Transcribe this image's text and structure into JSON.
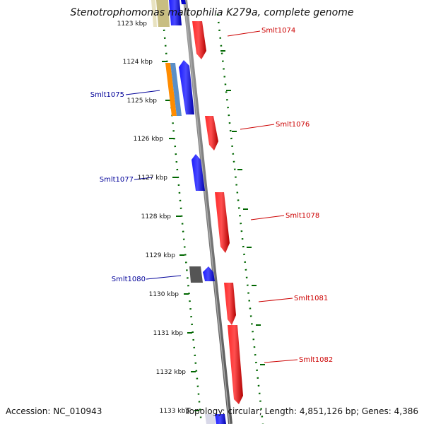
{
  "title": "Stenotrophomonas maltophilia K279a, complete genome",
  "footer": {
    "accession": "Accession: NC_010943",
    "topology": "Topology: circular; Length: 4,851,126 bp; Genes: 4,386"
  },
  "ticks": [
    {
      "label": "1123 kbp",
      "kbp": 1123
    },
    {
      "label": "1124 kbp",
      "kbp": 1124
    },
    {
      "label": "1125 kbp",
      "kbp": 1125
    },
    {
      "label": "1126 kbp",
      "kbp": 1126
    },
    {
      "label": "1127 kbp",
      "kbp": 1127
    },
    {
      "label": "1128 kbp",
      "kbp": 1128
    },
    {
      "label": "1129 kbp",
      "kbp": 1129
    },
    {
      "label": "1130 kbp",
      "kbp": 1130
    },
    {
      "label": "1131 kbp",
      "kbp": 1131
    },
    {
      "label": "1132 kbp",
      "kbp": 1132
    },
    {
      "label": "1133 kbp",
      "kbp": 1133
    }
  ],
  "gene_labels": [
    {
      "name": "Smlt1074",
      "strand": "forward",
      "color": "#cc0000"
    },
    {
      "name": "Smlt1075",
      "strand": "reverse",
      "color": "#000099"
    },
    {
      "name": "Smlt1076",
      "strand": "forward",
      "color": "#cc0000"
    },
    {
      "name": "Smlt1077",
      "strand": "reverse",
      "color": "#000099"
    },
    {
      "name": "Smlt1078",
      "strand": "forward",
      "color": "#cc0000"
    },
    {
      "name": "Smlt1080",
      "strand": "reverse",
      "color": "#000099"
    },
    {
      "name": "Smlt1081",
      "strand": "forward",
      "color": "#cc0000"
    },
    {
      "name": "Smlt1082",
      "strand": "forward",
      "color": "#cc0000"
    }
  ],
  "colors": {
    "forward": "#ff0000",
    "reverse": "#0000ff",
    "backbone": "#888888",
    "gc_dots": "#006600",
    "orange": "#ff8c00",
    "steelblue": "#5b8fc7",
    "khaki": "#c8be82",
    "gray_feature": "#555555"
  }
}
